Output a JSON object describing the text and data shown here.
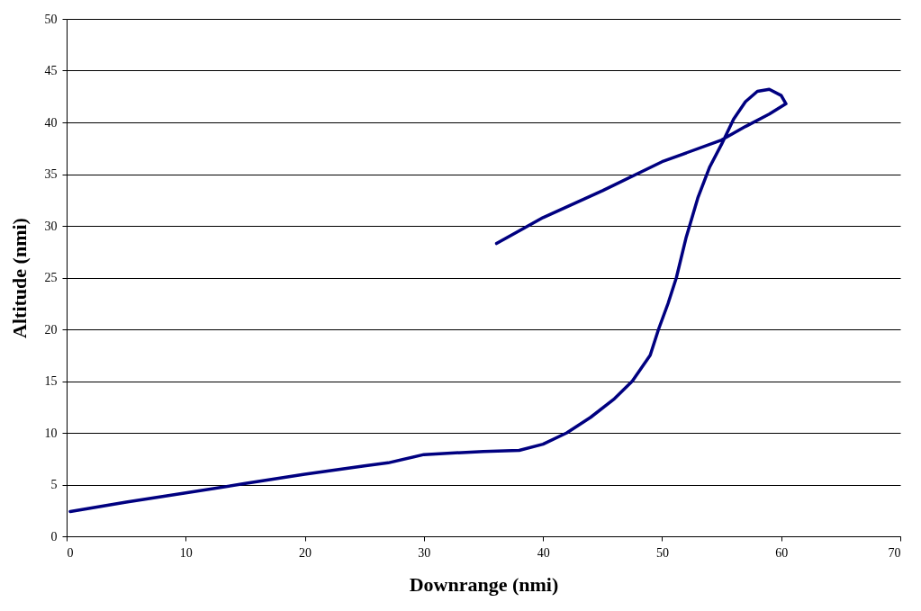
{
  "chart_data": {
    "type": "line",
    "xlabel": "Downrange (nmi)",
    "ylabel": "Altitude (nmi)",
    "xlim": [
      0,
      70
    ],
    "xticks": [
      0,
      10,
      20,
      30,
      40,
      50,
      60,
      70
    ],
    "ylim": [
      0,
      50
    ],
    "yticks": [
      0,
      5,
      10,
      15,
      20,
      25,
      30,
      35,
      40,
      45,
      50
    ],
    "grid": "y",
    "line_style": "solid",
    "series": [
      {
        "color": "#000080",
        "x": [
          0.3,
          5,
          10,
          15,
          20,
          25,
          27,
          30,
          35,
          38,
          40,
          42,
          44,
          46,
          47.5,
          49,
          49.7,
          50.5,
          51.2,
          52,
          53,
          54,
          55,
          56,
          57,
          58,
          59,
          60,
          60.4,
          59,
          57,
          55,
          50,
          45,
          40,
          36.1
        ],
        "values": [
          2.4,
          3.3,
          4.2,
          5.1,
          6,
          6.8,
          7.1,
          7.9,
          8.2,
          8.3,
          8.9,
          10,
          11.5,
          13.3,
          15,
          17.5,
          20,
          22.5,
          25,
          28.8,
          32.7,
          35.7,
          37.9,
          40.3,
          42,
          43,
          43.2,
          42.6,
          41.8,
          40.8,
          39.6,
          38.3,
          36.2,
          33.4,
          30.8,
          28.3
        ]
      }
    ]
  }
}
